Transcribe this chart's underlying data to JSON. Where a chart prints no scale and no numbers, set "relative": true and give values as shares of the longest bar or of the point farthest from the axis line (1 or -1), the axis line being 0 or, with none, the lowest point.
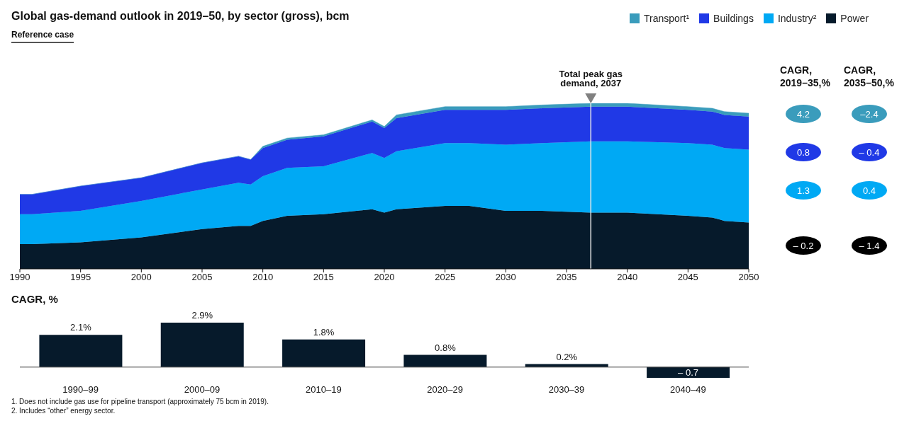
{
  "chart_data": [
    {
      "type": "area",
      "title": "Global gas-demand outlook in 2019–50, by sector (gross), bcm",
      "subtitle": "Reference case",
      "relative": true,
      "stacked": true,
      "legend": "top right",
      "x": [
        1990,
        1991,
        1995,
        2000,
        2005,
        2008,
        2009,
        2010,
        2012,
        2015,
        2019,
        2020,
        2021,
        2025,
        2027,
        2030,
        2033,
        2037,
        2040,
        2045,
        2047,
        2048,
        2050
      ],
      "xlim": [
        1990,
        2050
      ],
      "xticks": [
        1990,
        1995,
        2000,
        2005,
        2010,
        2015,
        2020,
        2025,
        2030,
        2035,
        2040,
        2045,
        2050
      ],
      "series": [
        {
          "name": "Power",
          "color": "#061a2b",
          "values": [
            0.15,
            0.15,
            0.16,
            0.19,
            0.24,
            0.26,
            0.26,
            0.29,
            0.32,
            0.33,
            0.36,
            0.34,
            0.36,
            0.38,
            0.38,
            0.35,
            0.35,
            0.34,
            0.34,
            0.32,
            0.31,
            0.29,
            0.28
          ]
        },
        {
          "name": "Industry²",
          "color": "#00a9f4",
          "values": [
            0.18,
            0.18,
            0.19,
            0.22,
            0.24,
            0.26,
            0.25,
            0.27,
            0.29,
            0.29,
            0.34,
            0.33,
            0.35,
            0.38,
            0.38,
            0.4,
            0.41,
            0.43,
            0.43,
            0.44,
            0.44,
            0.44,
            0.44
          ]
        },
        {
          "name": "Buildings",
          "color": "#2039e6",
          "values": [
            0.12,
            0.12,
            0.15,
            0.14,
            0.16,
            0.16,
            0.15,
            0.17,
            0.17,
            0.18,
            0.19,
            0.18,
            0.2,
            0.2,
            0.2,
            0.21,
            0.21,
            0.21,
            0.21,
            0.2,
            0.2,
            0.2,
            0.2
          ]
        },
        {
          "name": "Transport¹",
          "color": "#3a9cbc",
          "values": [
            0,
            0,
            0,
            0,
            0,
            0,
            0,
            0.01,
            0.01,
            0.01,
            0.01,
            0.01,
            0.02,
            0.02,
            0.02,
            0.02,
            0.02,
            0.02,
            0.02,
            0.02,
            0.02,
            0.02,
            0.02
          ]
        }
      ],
      "ref_lines": [
        {
          "axis": "x",
          "value": 2037,
          "label": "Total peak gas demand, 2037",
          "color": "#e8e8e8"
        }
      ]
    },
    {
      "type": "bar",
      "title": "CAGR, %",
      "categories": [
        "1990–99",
        "2000–09",
        "2010–19",
        "2020–29",
        "2030–39",
        "2040–49"
      ],
      "values": [
        2.1,
        2.9,
        1.8,
        0.8,
        0.2,
        -0.7
      ],
      "color": "#061a2b",
      "value_labels": [
        "2.1%",
        "2.9%",
        "1.8%",
        "0.8%",
        "0.2%",
        "– 0.7"
      ],
      "annotations": [
        "1. Does not include gas use for pipeline transport (approximately 75 bcm in 2019).",
        "2. Includes “other” energy sector."
      ]
    },
    {
      "type": "other",
      "categories": [
        "CAGR, 2019–35,%",
        "CAGR, 2035–50,%"
      ],
      "series": [
        {
          "color": "#3a9cbc",
          "values": [
            4.2,
            -2.4
          ],
          "value_labels": [
            "4.2",
            "–2.4"
          ]
        },
        {
          "color": "#2039e6",
          "values": [
            0.8,
            -0.4
          ],
          "value_labels": [
            "0.8",
            "– 0.4"
          ]
        },
        {
          "color": "#00a9f4",
          "values": [
            1.3,
            0.4
          ],
          "value_labels": [
            "1.3",
            "0.4"
          ]
        },
        {
          "color": "#000000",
          "values": [
            -0.2,
            -1.4
          ],
          "value_labels": [
            "– 0.2",
            "– 1.4"
          ]
        }
      ]
    }
  ]
}
